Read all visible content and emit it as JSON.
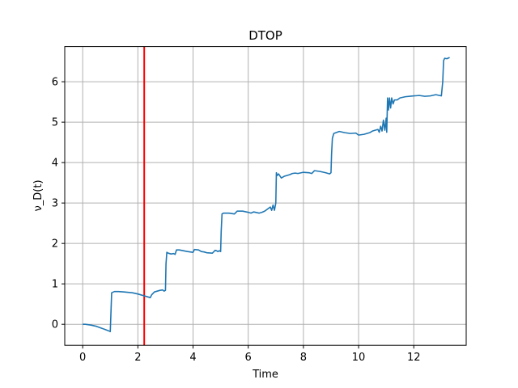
{
  "chart_data": {
    "type": "line",
    "title": "DTOP",
    "xlabel": "Time",
    "ylabel": "ν_D(t)",
    "xlim": [
      -0.65,
      13.9
    ],
    "ylim": [
      -0.52,
      6.87
    ],
    "xticks": [
      0,
      2,
      4,
      6,
      8,
      10,
      12
    ],
    "yticks": [
      0,
      1,
      2,
      3,
      4,
      5,
      6
    ],
    "grid": true,
    "line_color": "#1f77b4",
    "vline": {
      "x": 2.23,
      "color": "#ff0000"
    },
    "series": [
      {
        "x": [
          0,
          0.1,
          0.3,
          0.5,
          0.7,
          0.9,
          1.0,
          1.02,
          1.05,
          1.15,
          1.3,
          1.5,
          1.8,
          2.0,
          2.2,
          2.35,
          2.45,
          2.5,
          2.6,
          2.8,
          2.9,
          2.95,
          3.0,
          3.02,
          3.05,
          3.1,
          3.2,
          3.3,
          3.35,
          3.4,
          3.5,
          3.8,
          4.0,
          4.05,
          4.2,
          4.3,
          4.4,
          4.5,
          4.7,
          4.8,
          4.85,
          4.9,
          4.95,
          5.0,
          5.02,
          5.05,
          5.1,
          5.3,
          5.5,
          5.6,
          5.8,
          6.0,
          6.1,
          6.2,
          6.4,
          6.5,
          6.6,
          6.7,
          6.8,
          6.85,
          6.9,
          6.95,
          7.0,
          7.02,
          7.05,
          7.1,
          7.2,
          7.3,
          7.4,
          7.5,
          7.6,
          7.7,
          7.8,
          8.0,
          8.2,
          8.3,
          8.4,
          8.5,
          8.6,
          8.8,
          8.9,
          8.95,
          9.0,
          9.02,
          9.05,
          9.1,
          9.3,
          9.5,
          9.7,
          9.9,
          10.0,
          10.2,
          10.4,
          10.5,
          10.6,
          10.7,
          10.75,
          10.8,
          10.85,
          10.9,
          10.95,
          11.0,
          11.02,
          11.05,
          11.08,
          11.12,
          11.16,
          11.2,
          11.25,
          11.3,
          11.4,
          11.5,
          11.7,
          12.0,
          12.2,
          12.4,
          12.6,
          12.8,
          13.0,
          13.05,
          13.08,
          13.12,
          13.2,
          13.3
        ],
        "y": [
          0.0,
          0.0,
          -0.02,
          -0.05,
          -0.1,
          -0.15,
          -0.18,
          0.2,
          0.78,
          0.81,
          0.81,
          0.8,
          0.78,
          0.75,
          0.71,
          0.68,
          0.66,
          0.73,
          0.8,
          0.84,
          0.85,
          0.82,
          0.84,
          1.5,
          1.78,
          1.76,
          1.74,
          1.75,
          1.73,
          1.84,
          1.84,
          1.8,
          1.78,
          1.85,
          1.84,
          1.8,
          1.79,
          1.77,
          1.76,
          1.83,
          1.82,
          1.8,
          1.82,
          1.8,
          2.3,
          2.73,
          2.75,
          2.75,
          2.73,
          2.8,
          2.8,
          2.77,
          2.75,
          2.78,
          2.75,
          2.77,
          2.8,
          2.85,
          2.9,
          2.82,
          2.95,
          2.82,
          3.0,
          3.75,
          3.68,
          3.72,
          3.62,
          3.66,
          3.68,
          3.7,
          3.73,
          3.74,
          3.73,
          3.76,
          3.75,
          3.73,
          3.8,
          3.79,
          3.78,
          3.75,
          3.73,
          3.72,
          3.75,
          4.2,
          4.6,
          4.72,
          4.77,
          4.74,
          4.72,
          4.73,
          4.68,
          4.7,
          4.74,
          4.78,
          4.8,
          4.82,
          4.75,
          4.9,
          4.78,
          5.05,
          4.8,
          5.1,
          4.75,
          5.6,
          5.3,
          5.6,
          5.35,
          5.6,
          5.45,
          5.55,
          5.55,
          5.6,
          5.63,
          5.65,
          5.66,
          5.64,
          5.65,
          5.68,
          5.65,
          6.0,
          6.52,
          6.58,
          6.57,
          6.6
        ]
      }
    ]
  }
}
